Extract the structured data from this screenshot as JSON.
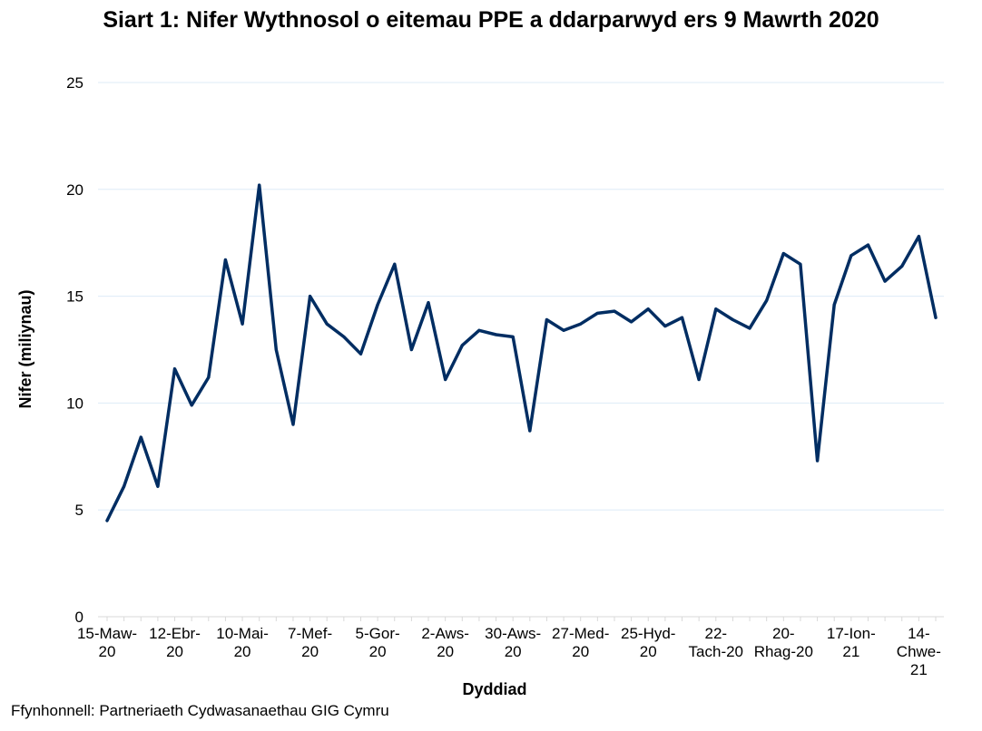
{
  "chart_data": {
    "type": "line",
    "title": "Siart 1: Nifer Wythnosol o eitemau PPE a ddarparwyd ers 9 Mawrth 2020",
    "xlabel": "Dyddiad",
    "ylabel": "Nifer (miliynau)",
    "ylim": [
      0,
      25
    ],
    "yticks": [
      0,
      5,
      10,
      15,
      20,
      25
    ],
    "grid": true,
    "line_color": "#002D62",
    "grid_color": "#DDEBF7",
    "x_tick_labels": [
      [
        "15-Maw-",
        "20"
      ],
      [
        "12-Ebr-",
        "20"
      ],
      [
        "10-Mai-",
        "20"
      ],
      [
        "7-Mef-",
        "20"
      ],
      [
        "5-Gor-",
        "20"
      ],
      [
        "2-Aws-",
        "20"
      ],
      [
        "30-Aws-",
        "20"
      ],
      [
        "27-Med-",
        "20"
      ],
      [
        "25-Hyd-",
        "20"
      ],
      [
        "22-",
        "Tach-20"
      ],
      [
        "20-",
        "Rhag-20"
      ],
      [
        "17-Ion-",
        "21"
      ],
      [
        "14-",
        "Chwe-",
        "21"
      ]
    ],
    "x_tick_every": 4,
    "series": [
      {
        "values": [
          4.5,
          6.1,
          8.4,
          6.1,
          11.6,
          9.9,
          11.2,
          16.7,
          13.7,
          20.2,
          12.5,
          9.0,
          15.0,
          13.7,
          13.1,
          12.3,
          14.6,
          16.5,
          12.5,
          14.7,
          11.1,
          12.7,
          13.4,
          13.2,
          13.1,
          8.7,
          13.9,
          13.4,
          13.7,
          14.2,
          14.3,
          13.8,
          14.4,
          13.6,
          14.0,
          11.1,
          14.4,
          13.9,
          13.5,
          14.8,
          17.0,
          16.5,
          7.3,
          14.6,
          16.9,
          17.4,
          15.7,
          16.4,
          17.8,
          14.0
        ]
      }
    ]
  },
  "source": "Ffynhonnell: Partneriaeth Cydwasanaethau GIG Cymru"
}
